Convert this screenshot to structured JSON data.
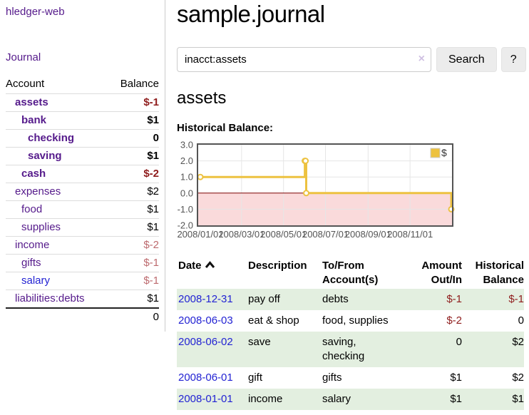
{
  "sidebar": {
    "app_title": "hledger-web",
    "journal_link": "Journal",
    "accounts_table": {
      "headers": [
        "Account",
        "Balance"
      ],
      "rows": [
        {
          "name": "assets",
          "indent": 0,
          "balance": "$-1",
          "bold": true,
          "balance_style": "negative",
          "link_color": "purple"
        },
        {
          "name": "bank",
          "indent": 1,
          "balance": "$1",
          "bold": true,
          "balance_style": "normal",
          "link_color": "purple"
        },
        {
          "name": "checking",
          "indent": 2,
          "balance": "0",
          "bold": true,
          "balance_style": "normal",
          "link_color": "purple"
        },
        {
          "name": "saving",
          "indent": 2,
          "balance": "$1",
          "bold": true,
          "balance_style": "normal",
          "link_color": "purple"
        },
        {
          "name": "cash",
          "indent": 1,
          "balance": "$-2",
          "bold": true,
          "balance_style": "negative",
          "link_color": "purple"
        },
        {
          "name": "expenses",
          "indent": 0,
          "balance": "$2",
          "bold": false,
          "balance_style": "normal",
          "link_color": "purple"
        },
        {
          "name": "food",
          "indent": 1,
          "balance": "$1",
          "bold": false,
          "balance_style": "normal",
          "link_color": "purple"
        },
        {
          "name": "supplies",
          "indent": 1,
          "balance": "$1",
          "bold": false,
          "balance_style": "normal",
          "link_color": "purple"
        },
        {
          "name": "income",
          "indent": 0,
          "balance": "$-2",
          "bold": false,
          "balance_style": "negative_muted",
          "link_color": "purple"
        },
        {
          "name": "gifts",
          "indent": 1,
          "balance": "$-1",
          "bold": false,
          "balance_style": "negative_muted",
          "link_color": "purple"
        },
        {
          "name": "salary",
          "indent": 1,
          "balance": "$-1",
          "bold": false,
          "balance_style": "negative_muted",
          "link_color": "blue"
        },
        {
          "name": "liabilities:debts",
          "indent": 0,
          "balance": "$1",
          "bold": false,
          "balance_style": "normal",
          "link_color": "purple"
        }
      ],
      "total": "0"
    }
  },
  "main": {
    "title": "sample.journal",
    "account_heading": "assets",
    "chart_title": "Historical Balance:"
  },
  "search": {
    "query": "inacct:assets",
    "clear_icon": "×",
    "search_button": "Search",
    "help_button": "?"
  },
  "chart_data": {
    "type": "line",
    "step": true,
    "title": "Historical Balance:",
    "series": [
      {
        "name": "$",
        "points": [
          [
            "2008-01-01",
            1
          ],
          [
            "2008-06-01",
            2
          ],
          [
            "2008-06-02",
            2
          ],
          [
            "2008-06-03",
            0
          ],
          [
            "2008-12-31",
            -1
          ]
        ]
      }
    ],
    "xlim": [
      "2008-01-01",
      "2008-12-31"
    ],
    "ylim": [
      -2,
      3
    ],
    "x_ticks": [
      "2008/01/01",
      "2008/03/01",
      "2008/05/01",
      "2008/07/01",
      "2008/09/01",
      "2008/11/01"
    ],
    "y_ticks": [
      3.0,
      2.0,
      1.0,
      0.0,
      -1.0,
      -2.0
    ],
    "legend": {
      "label": "$",
      "position": "top-right"
    },
    "grid": true
  },
  "register": {
    "headers": [
      "Date",
      "Description",
      "To/From Account(s)",
      "Amount Out/In",
      "Historical Balance"
    ],
    "rows": [
      {
        "date": "2008-12-31",
        "description": "pay off",
        "accounts": "debts",
        "amount": "$-1",
        "amount_negative": true,
        "balance": "$-1",
        "balance_negative": true
      },
      {
        "date": "2008-06-03",
        "description": "eat & shop",
        "accounts": "food, supplies",
        "amount": "$-2",
        "amount_negative": true,
        "balance": "0",
        "balance_negative": false
      },
      {
        "date": "2008-06-02",
        "description": "save",
        "accounts": "saving, checking",
        "amount": "0",
        "amount_negative": false,
        "balance": "$2",
        "balance_negative": false
      },
      {
        "date": "2008-06-01",
        "description": "gift",
        "accounts": "gifts",
        "amount": "$1",
        "amount_negative": false,
        "balance": "$2",
        "balance_negative": false
      },
      {
        "date": "2008-01-01",
        "description": "income",
        "accounts": "salary",
        "amount": "$1",
        "amount_negative": false,
        "balance": "$1",
        "balance_negative": false
      }
    ]
  },
  "colors": {
    "link_purple": "#551a8b",
    "link_blue": "#2323d3",
    "negative": "#8f1d1d",
    "negative_muted": "#bd6a6e",
    "row_green": "#e3efe0",
    "chart_line": "#edc240",
    "chart_negative_fill": "#fadadb",
    "chart_zero_line": "#7d0000",
    "chart_grid": "#e6e6e6",
    "chart_border": "#545454",
    "chart_tick_text": "#545454"
  }
}
